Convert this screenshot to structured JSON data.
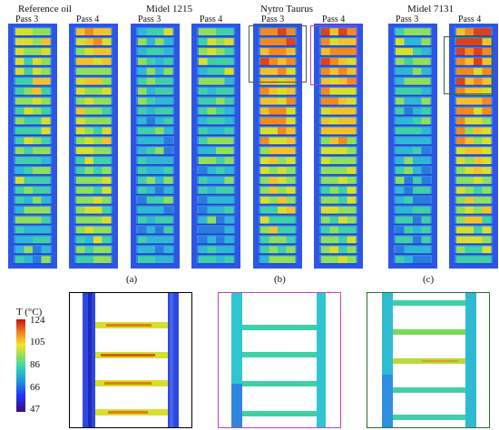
{
  "oils": [
    {
      "name": "Reference oil",
      "passes": [
        "Pass 3",
        "Pass 4"
      ]
    },
    {
      "name": "Midel 1215",
      "passes": [
        "Pass 3",
        "Pass 4"
      ]
    },
    {
      "name": "Nytro Taurus",
      "passes": [
        "Pass 3",
        "Pass 4"
      ]
    },
    {
      "name": "Midel 7131",
      "passes": [
        "Pass 3",
        "Pass 4"
      ]
    }
  ],
  "captions": [
    "(a)",
    "(b)",
    "(c)"
  ],
  "colorbar": {
    "title": "T (°C)",
    "ticks": [
      "124",
      "105",
      "86",
      "66",
      "47"
    ]
  },
  "colors": {
    "nytro_pass3_box": "#555555",
    "nytro_pass4_box": "#c040c0",
    "midel7131_pass4_box": "#2a6e2a",
    "zoom_a_border": "#000000",
    "zoom_b_border": "#c040c0",
    "zoom_c_border": "#2a6e2a"
  }
}
